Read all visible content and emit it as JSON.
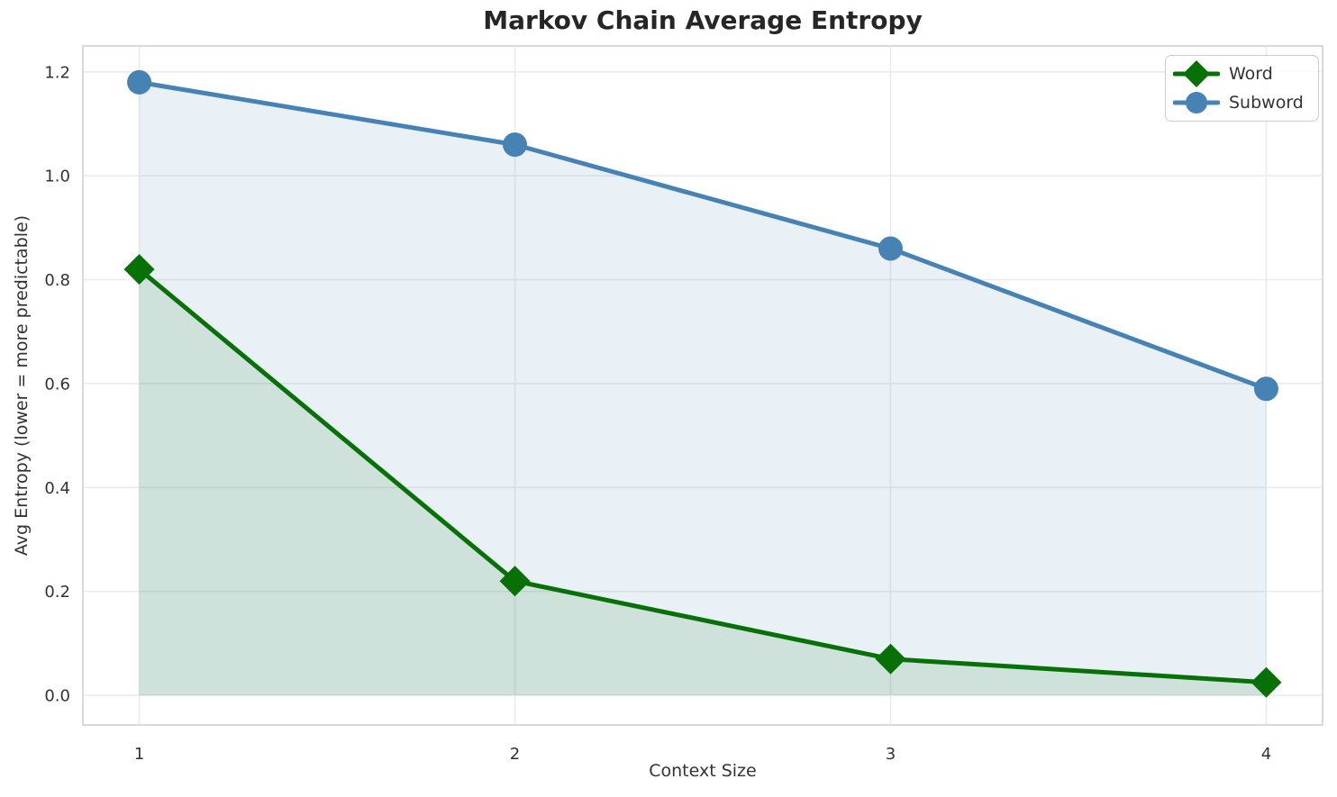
{
  "chart_data": {
    "type": "line",
    "title": "Markov Chain Average Entropy",
    "xlabel": "Context Size",
    "ylabel": "Avg Entropy (lower = more predictable)",
    "x": [
      1,
      2,
      3,
      4
    ],
    "series": [
      {
        "name": "Word",
        "values": [
          0.82,
          0.22,
          0.07,
          0.025
        ],
        "color": "#077007",
        "marker": "diamond"
      },
      {
        "name": "Subword",
        "values": [
          1.18,
          1.06,
          0.86,
          0.59
        ],
        "color": "#4682b4",
        "marker": "circle"
      }
    ],
    "xticks": [
      1,
      2,
      3,
      4
    ],
    "yticks": [
      0.0,
      0.2,
      0.4,
      0.6,
      0.8,
      1.0,
      1.2
    ],
    "xlim": [
      0.85,
      4.15
    ],
    "ylim": [
      -0.057,
      1.25
    ],
    "grid": true,
    "legend_position": "upper right",
    "area_fill": true,
    "fill_baseline": 0,
    "fill_opacity": 0.12,
    "colors": {
      "grid": "#ebebeb",
      "spine": "#d9d9d9",
      "title_text": "#262626",
      "tick_text": "#333333",
      "background": "#ffffff"
    }
  }
}
